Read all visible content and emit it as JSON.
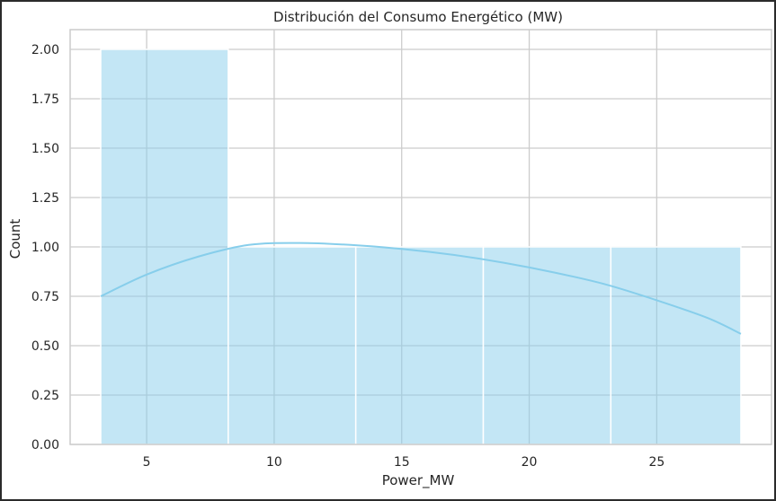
{
  "chart_data": {
    "type": "bar",
    "title": "Distribución del Consumo Energético (MW)",
    "xlabel": "Power_MW",
    "ylabel": "Count",
    "bins": [
      {
        "x0": 3.2,
        "x1": 8.2,
        "count": 2
      },
      {
        "x0": 8.2,
        "x1": 13.2,
        "count": 1
      },
      {
        "x0": 13.2,
        "x1": 18.2,
        "count": 1
      },
      {
        "x0": 18.2,
        "x1": 23.2,
        "count": 1
      },
      {
        "x0": 23.2,
        "x1": 28.3,
        "count": 1
      }
    ],
    "kde": {
      "x": [
        3.2,
        5,
        7,
        9,
        11,
        13,
        15,
        17,
        19,
        21,
        23,
        25,
        27,
        28.3
      ],
      "y": [
        0.75,
        0.86,
        0.95,
        1.01,
        1.02,
        1.01,
        0.99,
        0.96,
        0.92,
        0.87,
        0.81,
        0.73,
        0.64,
        0.56
      ]
    },
    "xlim": [
      2.0,
      29.5
    ],
    "ylim": [
      0,
      2.1
    ],
    "xticks": [
      5,
      10,
      15,
      20,
      25
    ],
    "xtick_labels": [
      "5",
      "10",
      "15",
      "20",
      "25"
    ],
    "yticks": [
      0,
      0.25,
      0.5,
      0.75,
      1.0,
      1.25,
      1.5,
      1.75,
      2.0
    ],
    "ytick_labels": [
      "0.00",
      "0.25",
      "0.50",
      "0.75",
      "1.00",
      "1.25",
      "1.50",
      "1.75",
      "2.00"
    ],
    "grid": true,
    "colors": {
      "bar_fill": "#87ceeb",
      "kde_line": "#87ceeb",
      "grid": "#cccccc",
      "frame": "#cccccc"
    }
  }
}
